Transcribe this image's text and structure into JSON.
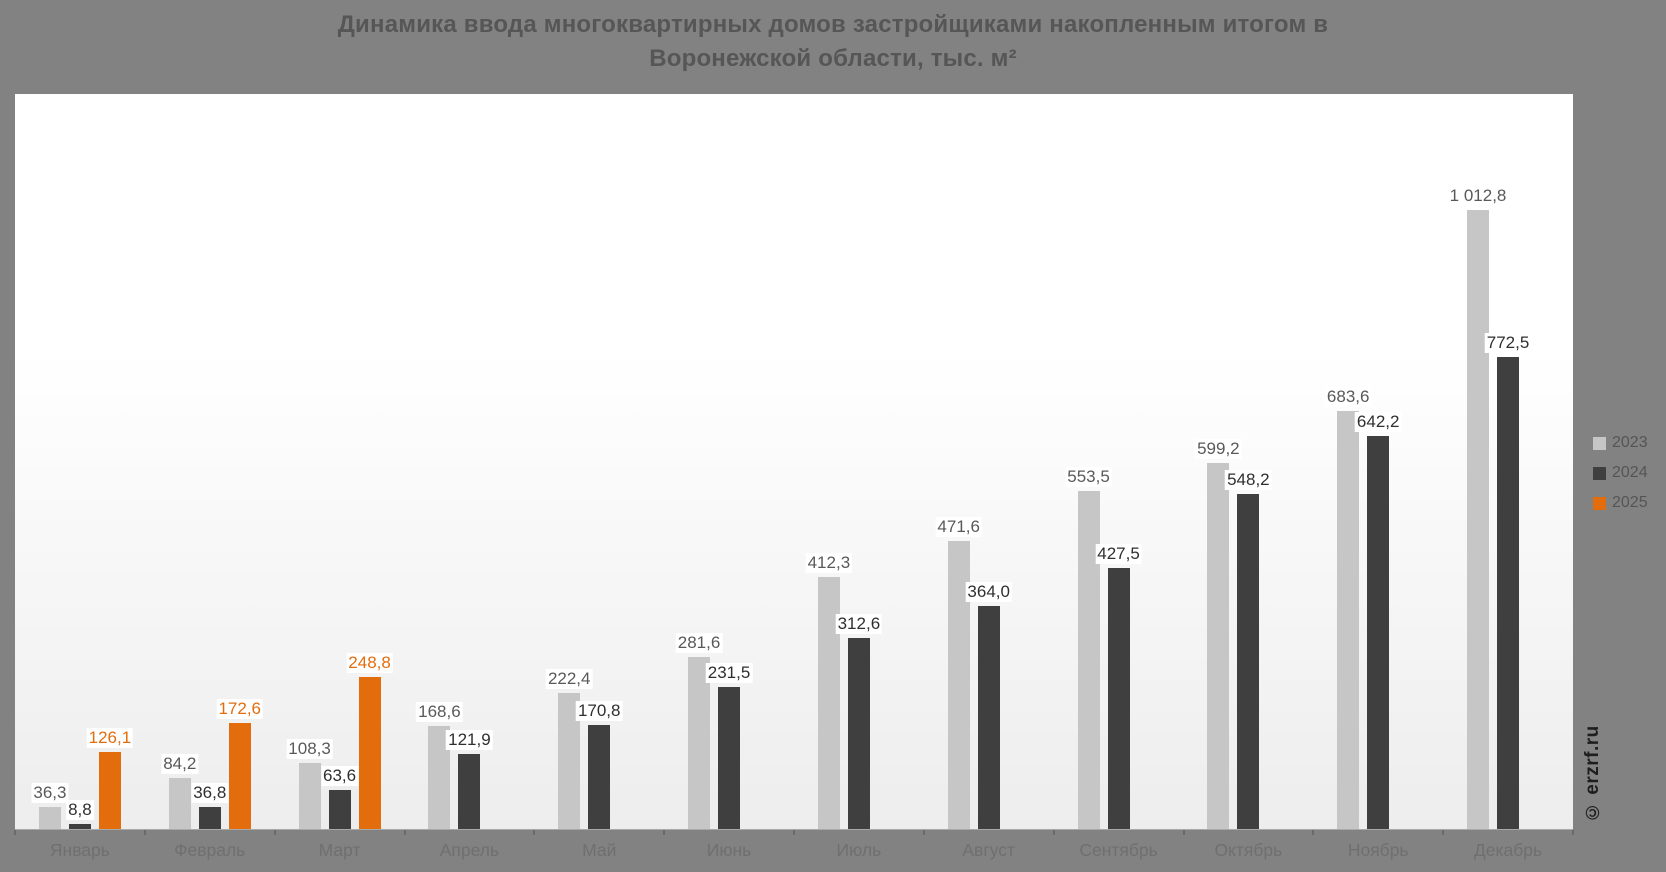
{
  "title": {
    "line1": "Динамика ввода многоквартирных домов застройщиками накопленным итогом в",
    "line2": "Воронежской области, тыс. м²"
  },
  "watermark": "© erzrf.ru",
  "legend": {
    "position": "right",
    "items": [
      {
        "label": "2023",
        "color": "#c6c6c6"
      },
      {
        "label": "2024",
        "color": "#3f3f3f"
      },
      {
        "label": "2025",
        "color": "#e36d0d"
      }
    ]
  },
  "chart_data": {
    "type": "bar",
    "title": "Динамика ввода многоквартирных домов застройщиками накопленным итогом в Воронежской области, тыс. м²",
    "ylabel": "тыс. м²",
    "xlabel": "",
    "grid": false,
    "value_labels": true,
    "legend_position": "right",
    "ylim": [
      0,
      1200
    ],
    "categories": [
      "Январь",
      "Февраль",
      "Март",
      "Апрель",
      "Май",
      "Июнь",
      "Июль",
      "Август",
      "Сентябрь",
      "Октябрь",
      "Ноябрь",
      "Декабрь"
    ],
    "series": [
      {
        "name": "2023",
        "color": "#c6c6c6",
        "label_color": "#595959",
        "values": [
          36.3,
          84.2,
          108.3,
          168.6,
          222.4,
          281.6,
          412.3,
          471.6,
          553.5,
          599.2,
          683.6,
          1012.8
        ],
        "labels": [
          "36,3",
          "84,2",
          "108,3",
          "168,6",
          "222,4",
          "281,6",
          "412,3",
          "471,6",
          "553,5",
          "599,2",
          "683,6",
          "1 012,8"
        ]
      },
      {
        "name": "2024",
        "color": "#3f3f3f",
        "label_color": "#2f2f2f",
        "values": [
          8.8,
          36.8,
          63.6,
          121.9,
          170.8,
          231.5,
          312.6,
          364.0,
          427.5,
          548.2,
          642.2,
          772.5
        ],
        "labels": [
          "8,8",
          "36,8",
          "63,6",
          "121,9",
          "170,8",
          "231,5",
          "312,6",
          "364,0",
          "427,5",
          "548,2",
          "642,2",
          "772,5"
        ]
      },
      {
        "name": "2025",
        "color": "#e36d0d",
        "label_color": "#e36d0d",
        "values": [
          126.1,
          172.6,
          248.8,
          null,
          null,
          null,
          null,
          null,
          null,
          null,
          null,
          null
        ],
        "labels": [
          "126,1",
          "172,6",
          "248,8",
          null,
          null,
          null,
          null,
          null,
          null,
          null,
          null,
          null
        ]
      }
    ]
  }
}
